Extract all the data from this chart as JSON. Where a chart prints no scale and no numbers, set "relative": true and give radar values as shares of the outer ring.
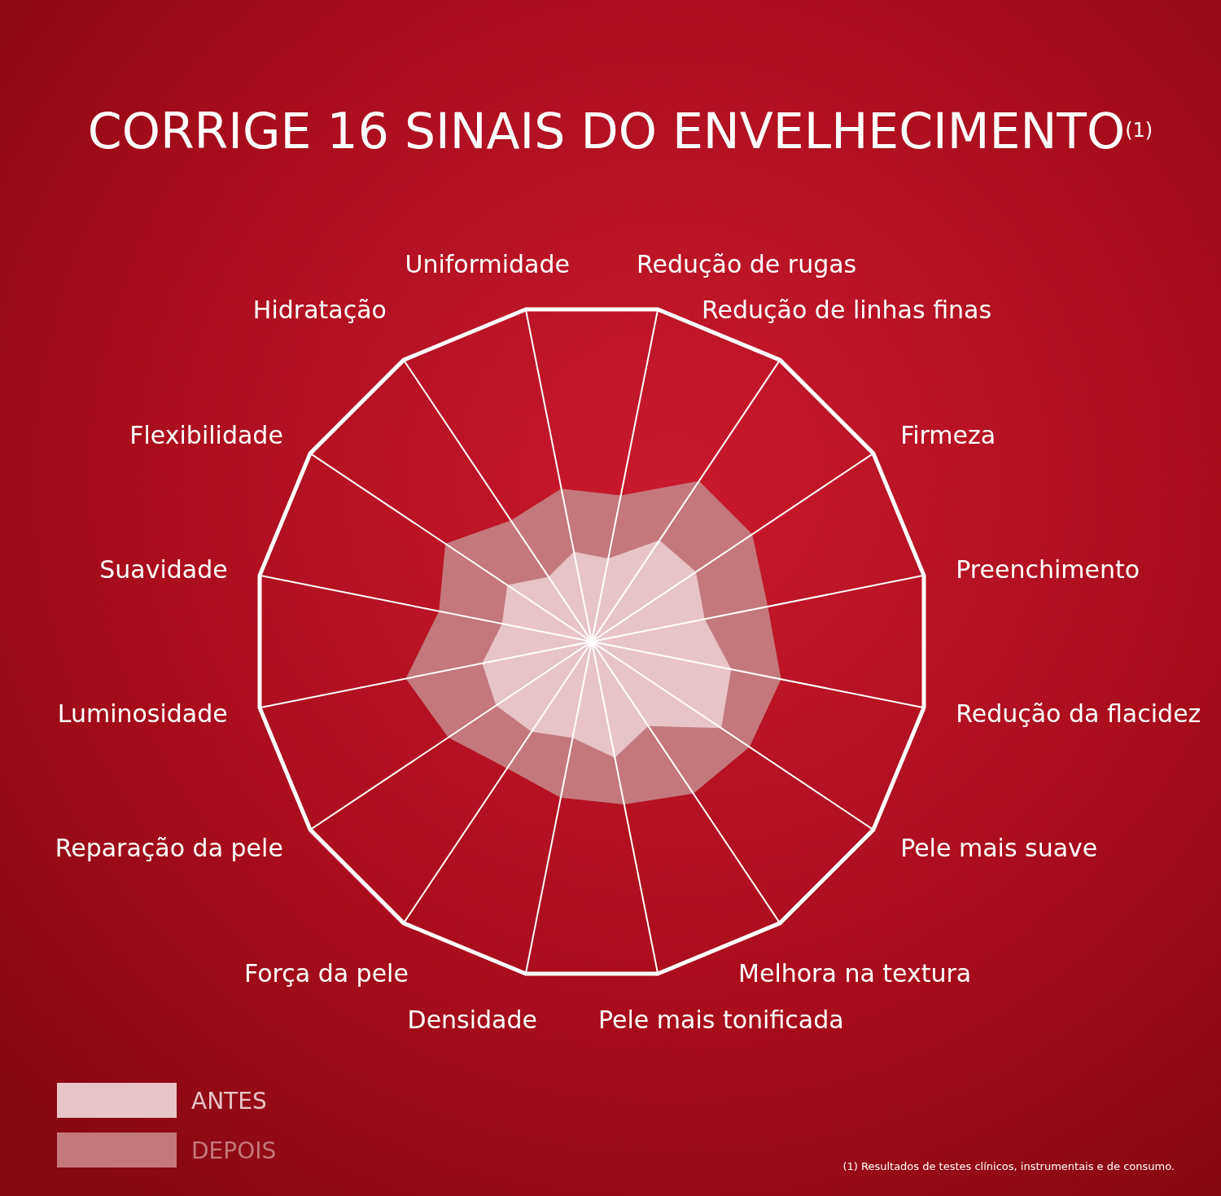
{
  "chart_data": {
    "type": "radar",
    "title": "CORRIGE 16 SINAIS DO ENVELHECIMENTO$^{(1)}$",
    "relative": true,
    "categories": [
      "Redução de rugas",
      "Redução de linhas finas",
      "Firmeza",
      "Preenchimento",
      "Redução da flacidez",
      "Pele mais suave",
      "Melhora na textura",
      "Pele mais tonificada",
      "Densidade",
      "Força da pele",
      "Reparação da pele",
      "Luminosidade",
      "Suavidade",
      "Flexibilidade",
      "Hidratação",
      "Uniformidade"
    ],
    "series": [
      {
        "name": "ANTES",
        "color": "#e8c4c8",
        "values": [
          0.25,
          0.36,
          0.37,
          0.34,
          0.42,
          0.46,
          0.3,
          0.35,
          0.29,
          0.32,
          0.34,
          0.33,
          0.27,
          0.3,
          0.23,
          0.27
        ]
      },
      {
        "name": "DEPOIS",
        "color": "#c4787d",
        "values": [
          0.44,
          0.57,
          0.57,
          0.53,
          0.57,
          0.56,
          0.54,
          0.49,
          0.47,
          0.45,
          0.51,
          0.56,
          0.46,
          0.52,
          0.43,
          0.46
        ]
      }
    ],
    "legend": "bottom left",
    "annotations": [
      "(1) Resultados de testes clínicos, instrumentais e de consumo."
    ]
  }
}
